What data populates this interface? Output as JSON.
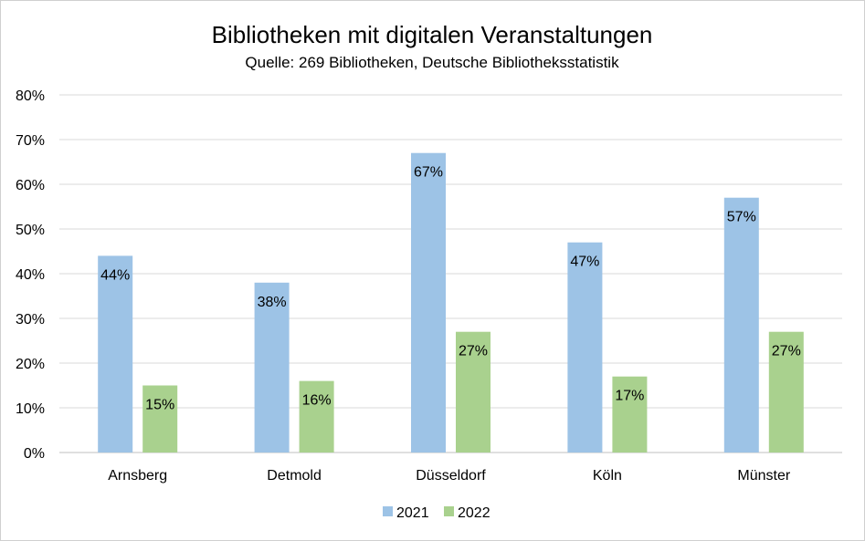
{
  "chart_data": {
    "type": "bar",
    "title": "Bibliotheken mit digitalen Veranstaltungen",
    "subtitle": "Quelle: 269 Bibliotheken, Deutsche Bibliotheksstatistik",
    "categories": [
      "Arnsberg",
      "Detmold",
      "Düsseldorf",
      "Köln",
      "Münster"
    ],
    "series": [
      {
        "name": "2021",
        "color": "#9dc3e6",
        "values": [
          44,
          38,
          67,
          47,
          57
        ],
        "labels": [
          "44%",
          "38%",
          "67%",
          "47%",
          "57%"
        ]
      },
      {
        "name": "2022",
        "color": "#a9d18e",
        "values": [
          15,
          16,
          27,
          17,
          27
        ],
        "labels": [
          "15%",
          "16%",
          "27%",
          "17%",
          "27%"
        ]
      }
    ],
    "yticks": [
      0,
      10,
      20,
      30,
      40,
      50,
      60,
      70,
      80
    ],
    "ytick_labels": [
      "0%",
      "10%",
      "20%",
      "30%",
      "40%",
      "50%",
      "60%",
      "70%",
      "80%"
    ],
    "ylim": [
      0,
      80
    ],
    "grid": true,
    "legend": "bottom"
  }
}
